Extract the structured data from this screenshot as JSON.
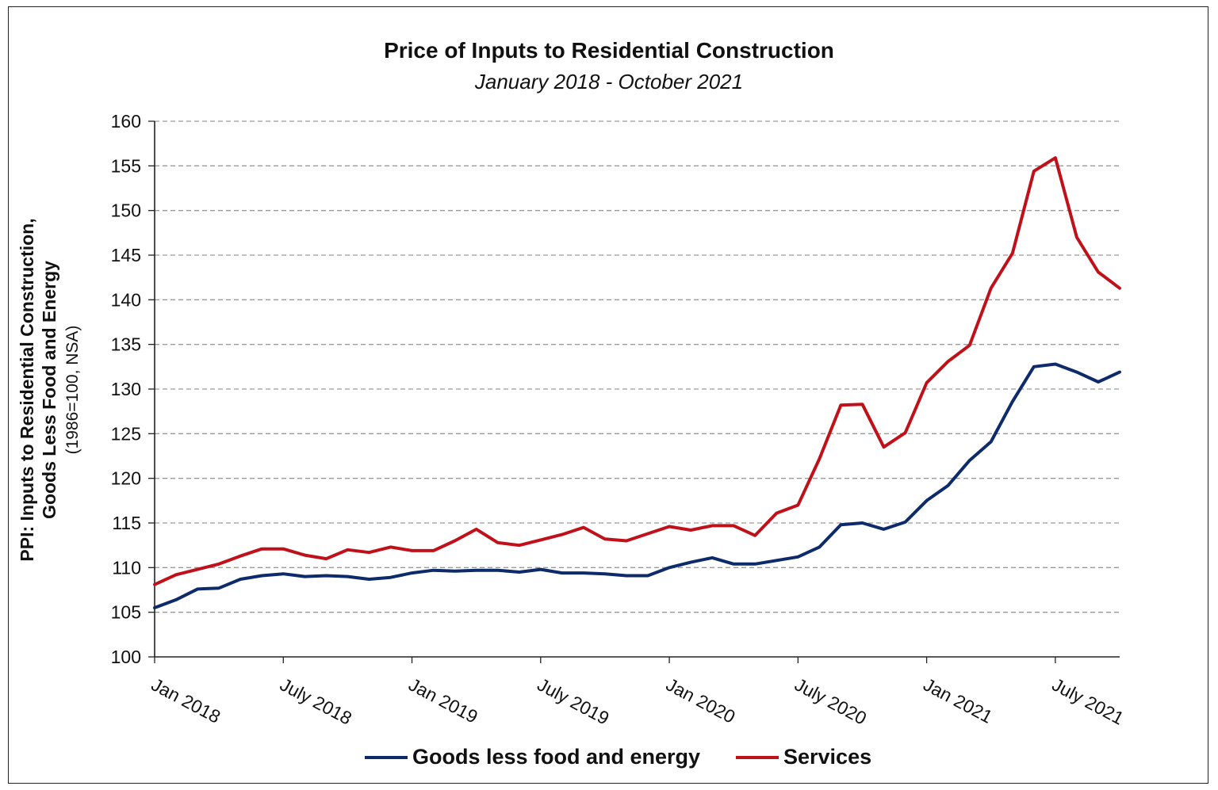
{
  "chart_data": {
    "type": "line",
    "title": "Price of Inputs to Residential Construction",
    "subtitle": "January 2018 - October 2021",
    "ylabel_lines": [
      "PPI: Inputs to Residential Construction,",
      "Goods Less Food and Energy"
    ],
    "ylabel_unit": "(1986=100, NSA)",
    "xlabel": "",
    "ylim": [
      100,
      160
    ],
    "yticks": [
      100,
      105,
      110,
      115,
      120,
      125,
      130,
      135,
      140,
      145,
      150,
      155,
      160
    ],
    "x_tick_labels": [
      "Jan 2018",
      "July 2018",
      "Jan 2019",
      "July 2019",
      "Jan 2020",
      "July 2020",
      "Jan 2021",
      "July 2021"
    ],
    "grid": true,
    "legend_position": "bottom",
    "x_start": "2018-01",
    "x_end": "2021-10",
    "series": [
      {
        "name": "Goods less food and energy",
        "color": "#0d2a6b",
        "values": [
          105.5,
          106.4,
          107.6,
          107.7,
          108.7,
          109.1,
          109.3,
          109.0,
          109.1,
          109.0,
          108.7,
          108.9,
          109.4,
          109.7,
          109.6,
          109.7,
          109.7,
          109.5,
          109.8,
          109.4,
          109.4,
          109.3,
          109.1,
          109.1,
          110.0,
          110.6,
          111.1,
          110.4,
          110.4,
          110.8,
          111.2,
          112.3,
          114.8,
          115.0,
          114.3,
          115.1,
          117.5,
          119.2,
          122.0,
          124.1,
          128.6,
          132.5,
          132.8,
          131.9,
          130.8,
          131.9
        ]
      },
      {
        "name": "Services",
        "color": "#c0111a",
        "values": [
          108.1,
          109.2,
          109.8,
          110.4,
          111.3,
          112.1,
          112.1,
          111.4,
          111.0,
          112.0,
          111.7,
          112.3,
          111.9,
          111.9,
          113.0,
          114.3,
          112.8,
          112.5,
          113.1,
          113.7,
          114.5,
          113.2,
          113.0,
          113.8,
          114.6,
          114.2,
          114.7,
          114.7,
          113.6,
          116.1,
          117.0,
          122.2,
          128.2,
          128.3,
          123.5,
          125.1,
          130.7,
          133.1,
          134.9,
          141.3,
          145.2,
          154.4,
          155.9,
          147.0,
          143.1,
          141.3
        ]
      }
    ]
  }
}
